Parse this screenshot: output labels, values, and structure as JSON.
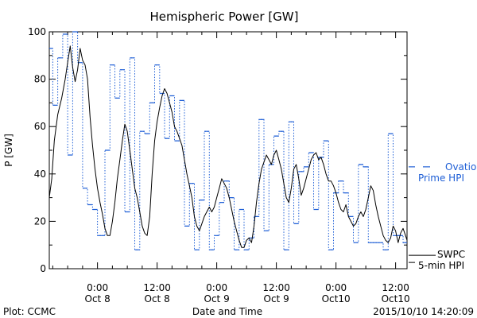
{
  "chart_data": {
    "type": "line",
    "title": "Hemispheric Power [GW]",
    "xlabel": "Date and Time",
    "ylabel": "P [GW]",
    "ylim": [
      0,
      100
    ],
    "y_ticks": [
      0,
      20,
      40,
      60,
      80,
      100
    ],
    "x_ticks": [
      {
        "t": 24,
        "time": "0:00",
        "date": "Oct 8"
      },
      {
        "t": 36,
        "time": "12:00",
        "date": "Oct 8"
      },
      {
        "t": 48,
        "time": "0:00",
        "date": "Oct 9"
      },
      {
        "t": 60,
        "time": "12:00",
        "date": "Oct 9"
      },
      {
        "t": 72,
        "time": "0:00",
        "date": "Oct10"
      },
      {
        "t": 84,
        "time": "12:00",
        "date": "Oct10"
      }
    ],
    "xlim": [
      14.3,
      86.3
    ],
    "grid": false,
    "legend": "right",
    "series": [
      {
        "name": "Ovation Prime HPI",
        "style": "blue dotted steps",
        "color": "#1f5fd6",
        "points": [
          [
            14.3,
            93
          ],
          [
            15.0,
            69
          ],
          [
            16.0,
            89
          ],
          [
            17.0,
            99
          ],
          [
            18.0,
            48
          ],
          [
            19.0,
            100
          ],
          [
            20.0,
            87
          ],
          [
            21.0,
            34
          ],
          [
            22.0,
            27
          ],
          [
            23.0,
            25
          ],
          [
            24.0,
            14
          ],
          [
            25.5,
            50
          ],
          [
            26.5,
            86
          ],
          [
            27.5,
            72
          ],
          [
            28.5,
            84
          ],
          [
            29.5,
            24
          ],
          [
            30.5,
            89
          ],
          [
            31.5,
            8
          ],
          [
            32.5,
            58
          ],
          [
            33.5,
            57
          ],
          [
            34.5,
            70
          ],
          [
            35.5,
            86
          ],
          [
            36.5,
            74
          ],
          [
            37.5,
            55
          ],
          [
            38.5,
            73
          ],
          [
            39.5,
            54
          ],
          [
            40.5,
            71
          ],
          [
            41.5,
            18
          ],
          [
            42.5,
            36
          ],
          [
            43.5,
            8
          ],
          [
            44.5,
            29
          ],
          [
            45.5,
            58
          ],
          [
            46.5,
            8
          ],
          [
            47.5,
            14
          ],
          [
            48.5,
            28
          ],
          [
            49.5,
            37
          ],
          [
            50.5,
            30
          ],
          [
            51.5,
            8
          ],
          [
            52.5,
            25
          ],
          [
            53.5,
            8
          ],
          [
            54.5,
            13
          ],
          [
            55.5,
            22
          ],
          [
            56.5,
            63
          ],
          [
            57.5,
            16
          ],
          [
            58.5,
            44
          ],
          [
            59.5,
            56
          ],
          [
            60.5,
            58
          ],
          [
            61.5,
            8
          ],
          [
            62.5,
            62
          ],
          [
            63.5,
            19
          ],
          [
            64.5,
            41
          ],
          [
            65.5,
            43
          ],
          [
            66.5,
            49
          ],
          [
            67.5,
            25
          ],
          [
            68.5,
            47
          ],
          [
            69.5,
            54
          ],
          [
            70.5,
            8
          ],
          [
            71.5,
            32
          ],
          [
            72.5,
            37
          ],
          [
            73.5,
            32
          ],
          [
            74.5,
            22
          ],
          [
            75.5,
            11
          ],
          [
            76.5,
            44
          ],
          [
            77.5,
            43
          ],
          [
            78.5,
            11
          ],
          [
            80.0,
            11
          ],
          [
            81.5,
            8
          ],
          [
            82.5,
            57
          ],
          [
            83.5,
            14
          ],
          [
            84.5,
            14
          ],
          [
            85.5,
            11
          ],
          [
            86.3,
            11
          ]
        ]
      },
      {
        "name": "SWPC 5-min HPI",
        "style": "black solid",
        "color": "#000000",
        "points": [
          [
            14.3,
            30
          ],
          [
            14.8,
            38
          ],
          [
            15.3,
            54
          ],
          [
            16.0,
            65
          ],
          [
            16.8,
            72
          ],
          [
            17.5,
            80
          ],
          [
            18.0,
            87
          ],
          [
            18.5,
            94
          ],
          [
            19.0,
            85
          ],
          [
            19.5,
            79
          ],
          [
            20.0,
            84
          ],
          [
            20.5,
            93
          ],
          [
            21.0,
            88
          ],
          [
            21.5,
            86
          ],
          [
            22.0,
            80
          ],
          [
            22.5,
            64
          ],
          [
            23.0,
            52
          ],
          [
            23.5,
            42
          ],
          [
            24.0,
            34
          ],
          [
            24.5,
            28
          ],
          [
            25.0,
            23
          ],
          [
            25.5,
            17
          ],
          [
            26.0,
            14
          ],
          [
            26.5,
            14
          ],
          [
            27.0,
            20
          ],
          [
            27.5,
            28
          ],
          [
            28.0,
            38
          ],
          [
            28.5,
            46
          ],
          [
            29.0,
            54
          ],
          [
            29.5,
            61
          ],
          [
            30.0,
            58
          ],
          [
            30.5,
            50
          ],
          [
            31.0,
            42
          ],
          [
            31.5,
            34
          ],
          [
            32.0,
            30
          ],
          [
            32.5,
            24
          ],
          [
            33.0,
            18
          ],
          [
            33.5,
            15
          ],
          [
            34.0,
            14
          ],
          [
            34.5,
            22
          ],
          [
            35.0,
            40
          ],
          [
            35.5,
            54
          ],
          [
            36.0,
            62
          ],
          [
            36.5,
            68
          ],
          [
            37.0,
            73
          ],
          [
            37.5,
            76
          ],
          [
            38.0,
            74
          ],
          [
            38.5,
            70
          ],
          [
            39.0,
            66
          ],
          [
            39.5,
            60
          ],
          [
            40.0,
            58
          ],
          [
            40.5,
            55
          ],
          [
            41.0,
            52
          ],
          [
            41.5,
            46
          ],
          [
            42.0,
            40
          ],
          [
            42.5,
            35
          ],
          [
            43.0,
            30
          ],
          [
            43.5,
            22
          ],
          [
            44.0,
            18
          ],
          [
            44.5,
            16
          ],
          [
            45.0,
            19
          ],
          [
            45.5,
            22
          ],
          [
            46.0,
            24
          ],
          [
            46.5,
            26
          ],
          [
            47.0,
            24
          ],
          [
            47.5,
            26
          ],
          [
            48.0,
            30
          ],
          [
            48.5,
            34
          ],
          [
            49.0,
            38
          ],
          [
            49.5,
            36
          ],
          [
            50.0,
            34
          ],
          [
            50.5,
            30
          ],
          [
            51.0,
            25
          ],
          [
            51.5,
            20
          ],
          [
            52.0,
            16
          ],
          [
            52.5,
            12
          ],
          [
            53.0,
            9
          ],
          [
            53.5,
            9
          ],
          [
            54.0,
            12
          ],
          [
            54.5,
            13
          ],
          [
            55.0,
            11
          ],
          [
            55.5,
            18
          ],
          [
            56.0,
            28
          ],
          [
            56.5,
            36
          ],
          [
            57.0,
            42
          ],
          [
            57.5,
            45
          ],
          [
            58.0,
            48
          ],
          [
            58.5,
            46
          ],
          [
            59.0,
            44
          ],
          [
            59.5,
            48
          ],
          [
            60.0,
            50
          ],
          [
            60.5,
            46
          ],
          [
            61.0,
            42
          ],
          [
            61.5,
            36
          ],
          [
            62.0,
            30
          ],
          [
            62.5,
            28
          ],
          [
            63.0,
            34
          ],
          [
            63.5,
            42
          ],
          [
            64.0,
            44
          ],
          [
            64.5,
            38
          ],
          [
            65.0,
            31
          ],
          [
            65.5,
            34
          ],
          [
            66.0,
            38
          ],
          [
            66.5,
            42
          ],
          [
            67.0,
            46
          ],
          [
            67.5,
            48
          ],
          [
            68.0,
            49
          ],
          [
            68.5,
            46
          ],
          [
            69.0,
            47
          ],
          [
            69.5,
            44
          ],
          [
            70.0,
            40
          ],
          [
            70.5,
            37
          ],
          [
            71.0,
            37
          ],
          [
            71.5,
            35
          ],
          [
            72.0,
            32
          ],
          [
            72.5,
            28
          ],
          [
            73.0,
            25
          ],
          [
            73.5,
            24
          ],
          [
            74.0,
            27
          ],
          [
            74.5,
            22
          ],
          [
            75.0,
            20
          ],
          [
            75.5,
            18
          ],
          [
            76.0,
            19
          ],
          [
            76.5,
            22
          ],
          [
            77.0,
            24
          ],
          [
            77.5,
            22
          ],
          [
            78.0,
            25
          ],
          [
            78.5,
            30
          ],
          [
            79.0,
            35
          ],
          [
            79.5,
            33
          ],
          [
            80.0,
            27
          ],
          [
            80.5,
            22
          ],
          [
            81.0,
            18
          ],
          [
            81.5,
            14
          ],
          [
            82.0,
            12
          ],
          [
            82.5,
            11
          ],
          [
            83.0,
            13
          ],
          [
            83.5,
            18
          ],
          [
            84.0,
            16
          ],
          [
            84.5,
            11
          ],
          [
            85.0,
            15
          ],
          [
            85.5,
            17
          ],
          [
            86.0,
            14
          ],
          [
            86.3,
            12
          ]
        ]
      }
    ],
    "legend_entries": [
      {
        "line1": "Ovation",
        "line2": "Prime HPI",
        "color": "#1f5fd6",
        "style": "dashed"
      },
      {
        "line1": "SWPC",
        "line2": "5-min HPI",
        "color": "#000000",
        "style": "solid"
      }
    ]
  },
  "footer": {
    "left": "Plot: CCMC",
    "center": "Date and Time",
    "right": "2015/10/10 14:20:09"
  }
}
